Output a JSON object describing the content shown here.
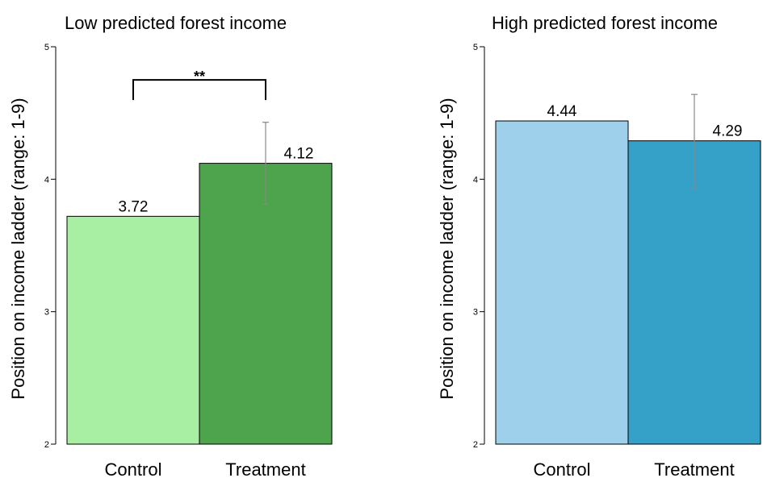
{
  "chart_data": [
    {
      "type": "bar",
      "title": "Low predicted forest income",
      "ylabel": "Position on income ladder (range: 1-9)",
      "categories": [
        "Control",
        "Treatment"
      ],
      "values": [
        3.72,
        4.12
      ],
      "value_labels": [
        "3.72",
        "4.12"
      ],
      "error_bars": [
        null,
        [
          3.81,
          4.43
        ]
      ],
      "ylim": [
        2,
        5
      ],
      "yticks": [
        2,
        3,
        4,
        5
      ],
      "ytick_labels": [
        "2",
        "3",
        "4",
        "5"
      ],
      "colors": [
        "#a8eea3",
        "#4ea34d"
      ],
      "significance": {
        "label": "**",
        "between": [
          "Control",
          "Treatment"
        ],
        "y": 4.75
      }
    },
    {
      "type": "bar",
      "title": "High predicted forest income",
      "ylabel": "Position on income ladder (range: 1-9)",
      "categories": [
        "Control",
        "Treatment"
      ],
      "values": [
        4.44,
        4.29
      ],
      "value_labels": [
        "4.44",
        "4.29"
      ],
      "error_bars": [
        null,
        [
          3.93,
          4.64
        ]
      ],
      "ylim": [
        2,
        5
      ],
      "yticks": [
        2,
        3,
        4,
        5
      ],
      "ytick_labels": [
        "2",
        "3",
        "4",
        "5"
      ],
      "colors": [
        "#9ecfeb",
        "#35a0c8"
      ],
      "significance": null
    }
  ]
}
